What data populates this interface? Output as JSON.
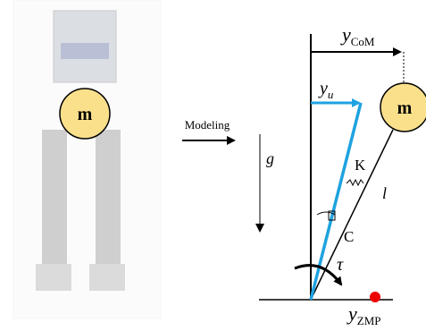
{
  "left_mass": "m",
  "right_mass": "m",
  "modeling_label": "Modeling",
  "gravity": "g",
  "y_com": {
    "main": "y",
    "sub": "CoM"
  },
  "y_u": {
    "main": "y",
    "sub": "u"
  },
  "spring": "K",
  "length": "l",
  "damper": "C",
  "torque": "τ",
  "y_zmp": {
    "main": "y",
    "sub": "ZMP"
  }
}
